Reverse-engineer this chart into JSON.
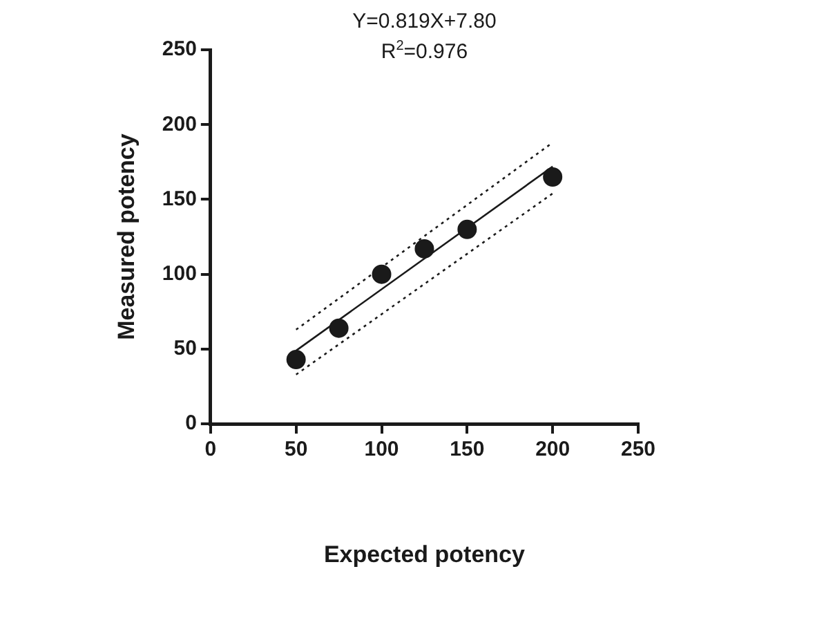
{
  "chart_data": {
    "type": "scatter",
    "xlabel": "Expected potency",
    "ylabel": "Measured potency",
    "annotations": [
      "Y=0.819X+7.80",
      "R$^{2}$=0.976"
    ],
    "xlim": [
      0,
      250
    ],
    "xticks": [
      0,
      50,
      100,
      150,
      200,
      250
    ],
    "ylim": [
      0,
      250
    ],
    "yticks": [
      0,
      50,
      100,
      150,
      200,
      250
    ],
    "grid": false,
    "legend": false,
    "series": [
      {
        "color": "#1a1a1a",
        "marker": "circle",
        "x": [
          50,
          75,
          100,
          125,
          150,
          200
        ],
        "values": [
          43,
          64,
          100,
          117,
          130,
          165
        ]
      },
      {
        "type": "line",
        "color": "#1a1a1a",
        "line_style": "solid",
        "marker": "none",
        "x": [
          50,
          200
        ],
        "values": [
          49,
          172
        ]
      },
      {
        "type": "line",
        "color": "#1a1a1a",
        "line_style": "dotted",
        "marker": "none",
        "x": [
          50,
          200
        ],
        "values": [
          63,
          188
        ]
      },
      {
        "type": "line",
        "color": "#1a1a1a",
        "line_style": "dotted",
        "marker": "none",
        "x": [
          50,
          200
        ],
        "values": [
          33,
          154
        ]
      }
    ]
  }
}
